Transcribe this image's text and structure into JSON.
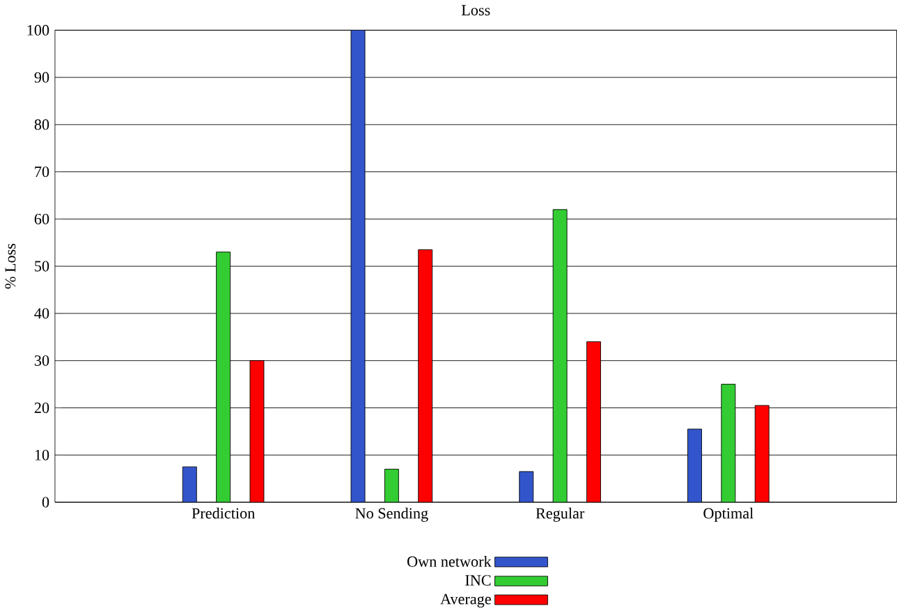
{
  "chart_data": {
    "type": "bar",
    "title": "Loss",
    "ylabel": "% Loss",
    "categories": [
      "Prediction",
      "No Sending",
      "Regular",
      "Optimal"
    ],
    "series": [
      {
        "name": "Own network",
        "color": "#3355cc",
        "values": [
          7.5,
          100,
          6.5,
          15.5
        ]
      },
      {
        "name": "INC",
        "color": "#33cc33",
        "values": [
          53,
          7,
          62,
          25
        ]
      },
      {
        "name": "Average",
        "color": "#ff0000",
        "values": [
          30,
          53.5,
          34,
          20.5
        ]
      }
    ],
    "ylim": [
      0,
      100
    ],
    "yticks": [
      0,
      10,
      20,
      30,
      40,
      50,
      60,
      70,
      80,
      90,
      100
    ],
    "grid": "y",
    "legend": "bottom"
  }
}
